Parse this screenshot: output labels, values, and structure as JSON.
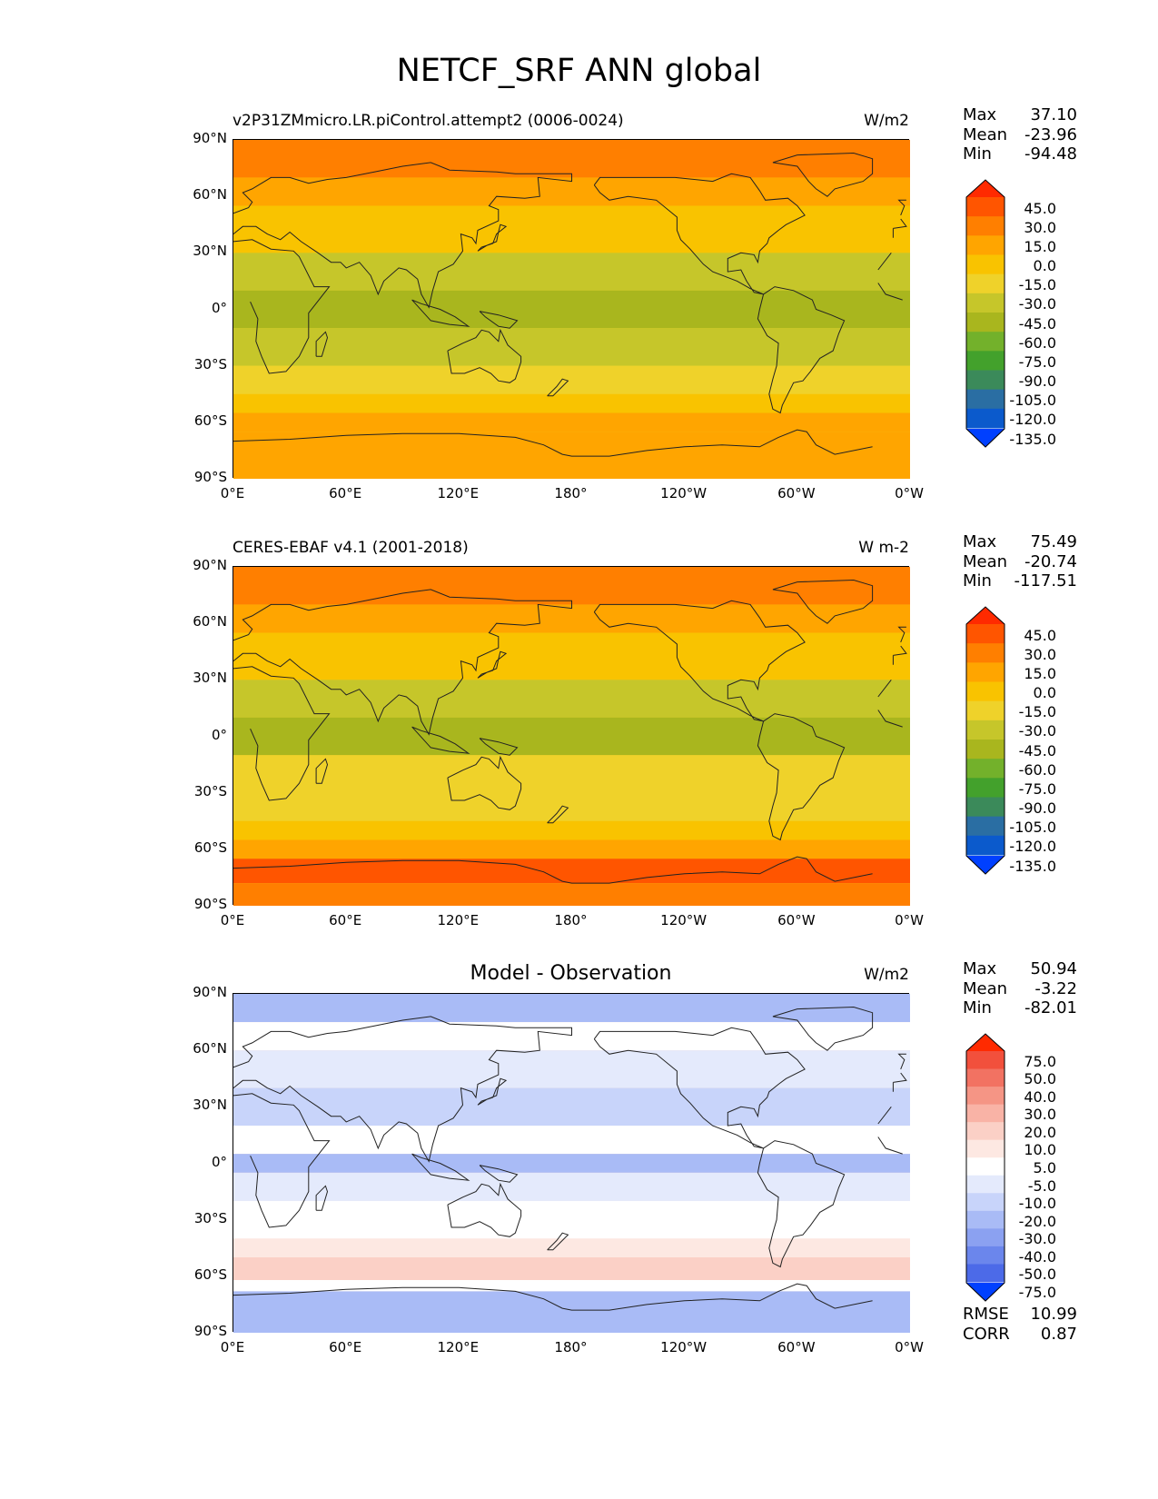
{
  "title": "NETCF_SRF ANN global",
  "x_ticks": [
    "0°E",
    "60°E",
    "120°E",
    "180°",
    "120°W",
    "60°W",
    "0°W"
  ],
  "y_ticks": [
    "90°N",
    "60°N",
    "30°N",
    "0°",
    "30°S",
    "60°S",
    "90°S"
  ],
  "panels": [
    {
      "left_title": "v2P31ZMmicro.LR.piControl.attempt2 (0006-0024)",
      "center_title": "",
      "units": "W/m2",
      "stats": [
        [
          "Max",
          "37.10"
        ],
        [
          "Mean",
          "-23.96"
        ],
        [
          "Min",
          "-94.48"
        ]
      ],
      "colorbar_labels": [
        "45.0",
        "30.0",
        "15.0",
        "0.0",
        "-15.0",
        "-30.0",
        "-45.0",
        "-60.0",
        "-75.0",
        "-90.0",
        "-105.0",
        "-120.0",
        "-135.0"
      ],
      "colorbar_colors": [
        "#ff2a00",
        "#ff5500",
        "#ff7f00",
        "#ffa500",
        "#f9c300",
        "#efd22a",
        "#c6c62a",
        "#a9b61e",
        "#73b12b",
        "#43a12c",
        "#3b8a5a",
        "#2a6ea3",
        "#0b5acc",
        "#0040ff"
      ]
    },
    {
      "left_title": "CERES-EBAF v4.1 (2001-2018)",
      "center_title": "",
      "units": "W m-2",
      "stats": [
        [
          "Max",
          "75.49"
        ],
        [
          "Mean",
          "-20.74"
        ],
        [
          "Min",
          "-117.51"
        ]
      ],
      "colorbar_labels": [
        "45.0",
        "30.0",
        "15.0",
        "0.0",
        "-15.0",
        "-30.0",
        "-45.0",
        "-60.0",
        "-75.0",
        "-90.0",
        "-105.0",
        "-120.0",
        "-135.0"
      ],
      "colorbar_colors": [
        "#ff2a00",
        "#ff5500",
        "#ff7f00",
        "#ffa500",
        "#f9c300",
        "#efd22a",
        "#c6c62a",
        "#a9b61e",
        "#73b12b",
        "#43a12c",
        "#3b8a5a",
        "#2a6ea3",
        "#0b5acc",
        "#0040ff"
      ]
    },
    {
      "left_title": "",
      "center_title": "Model - Observation",
      "units": "W/m2",
      "stats": [
        [
          "Max",
          "50.94"
        ],
        [
          "Mean",
          "-3.22"
        ],
        [
          "Min",
          "-82.01"
        ]
      ],
      "colorbar_labels": [
        "75.0",
        "50.0",
        "40.0",
        "30.0",
        "20.0",
        "10.0",
        "5.0",
        "-5.0",
        "-10.0",
        "-20.0",
        "-30.0",
        "-40.0",
        "-50.0",
        "-75.0"
      ],
      "colorbar_colors": [
        "#ff2a00",
        "#f2503c",
        "#f27262",
        "#f59585",
        "#f9b3a6",
        "#fbd0c6",
        "#fde8e2",
        "#ffffff",
        "#e4eafc",
        "#c8d4fa",
        "#a9bbf6",
        "#8ba1f1",
        "#6b86ec",
        "#4c6ae8",
        "#0040ff"
      ]
    }
  ],
  "metrics": [
    [
      "RMSE",
      "10.99"
    ],
    [
      "CORR",
      "0.87"
    ]
  ]
}
